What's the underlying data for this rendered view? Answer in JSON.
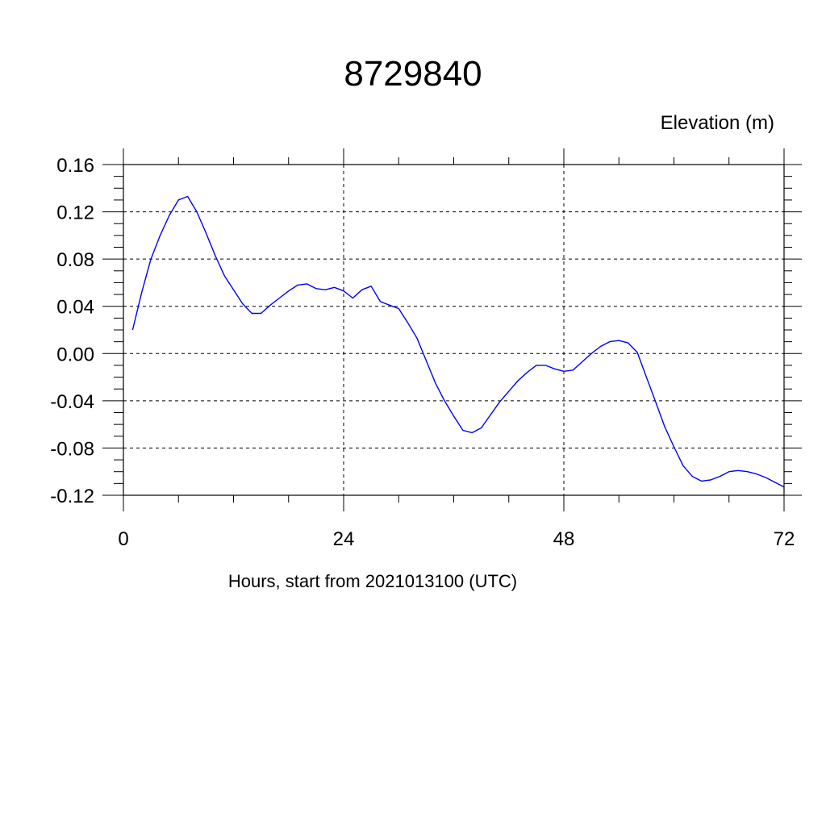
{
  "chart_data": {
    "type": "line",
    "title": "8729840",
    "xlabel": "Hours, start from 2021013100 (UTC)",
    "ylabel": "Elevation (m)",
    "xlim": [
      0,
      72
    ],
    "ylim": [
      -0.12,
      0.16
    ],
    "xticks": [
      0,
      24,
      48,
      72
    ],
    "xtick_labels": [
      "0",
      "24",
      "48",
      "72"
    ],
    "yticks": [
      0.16,
      0.12,
      0.08,
      0.04,
      0.0,
      -0.04,
      -0.08,
      -0.12
    ],
    "ytick_labels": [
      "0.16",
      "0.12",
      "0.08",
      "0.04",
      "0.00",
      "-0.04",
      "-0.08",
      "-0.12"
    ],
    "grid": true,
    "series": [
      {
        "color": "#0000ff",
        "x": [
          1,
          2,
          3,
          4,
          5,
          6,
          7,
          8,
          9,
          10,
          11,
          12,
          13,
          14,
          15,
          16,
          17,
          18,
          19,
          20,
          21,
          22,
          23,
          24,
          25,
          26,
          27,
          28,
          29,
          30,
          31,
          32,
          33,
          34,
          35,
          36,
          37,
          38,
          39,
          40,
          41,
          42,
          43,
          44,
          45,
          46,
          47,
          48,
          49,
          50,
          51,
          52,
          53,
          54,
          55,
          56,
          57,
          58,
          59,
          60,
          61,
          62,
          63,
          64,
          65,
          66,
          67,
          68,
          69,
          70,
          71,
          72
        ],
        "y": [
          0.02,
          0.052,
          0.08,
          0.1,
          0.117,
          0.13,
          0.133,
          0.12,
          0.102,
          0.083,
          0.066,
          0.054,
          0.042,
          0.034,
          0.034,
          0.041,
          0.047,
          0.053,
          0.058,
          0.059,
          0.055,
          0.054,
          0.056,
          0.053,
          0.047,
          0.054,
          0.057,
          0.044,
          0.041,
          0.038,
          0.026,
          0.013,
          -0.006,
          -0.025,
          -0.04,
          -0.053,
          -0.065,
          -0.067,
          -0.063,
          -0.052,
          -0.041,
          -0.032,
          -0.023,
          -0.016,
          -0.01,
          -0.01,
          -0.013,
          -0.015,
          -0.014,
          -0.007,
          0.0,
          0.006,
          0.01,
          0.011,
          0.009,
          0.001,
          -0.02,
          -0.041,
          -0.062,
          -0.079,
          -0.095,
          -0.104,
          -0.108,
          -0.107,
          -0.104,
          -0.1,
          -0.099,
          -0.1,
          -0.102,
          -0.105,
          -0.109,
          -0.113
        ]
      }
    ]
  }
}
